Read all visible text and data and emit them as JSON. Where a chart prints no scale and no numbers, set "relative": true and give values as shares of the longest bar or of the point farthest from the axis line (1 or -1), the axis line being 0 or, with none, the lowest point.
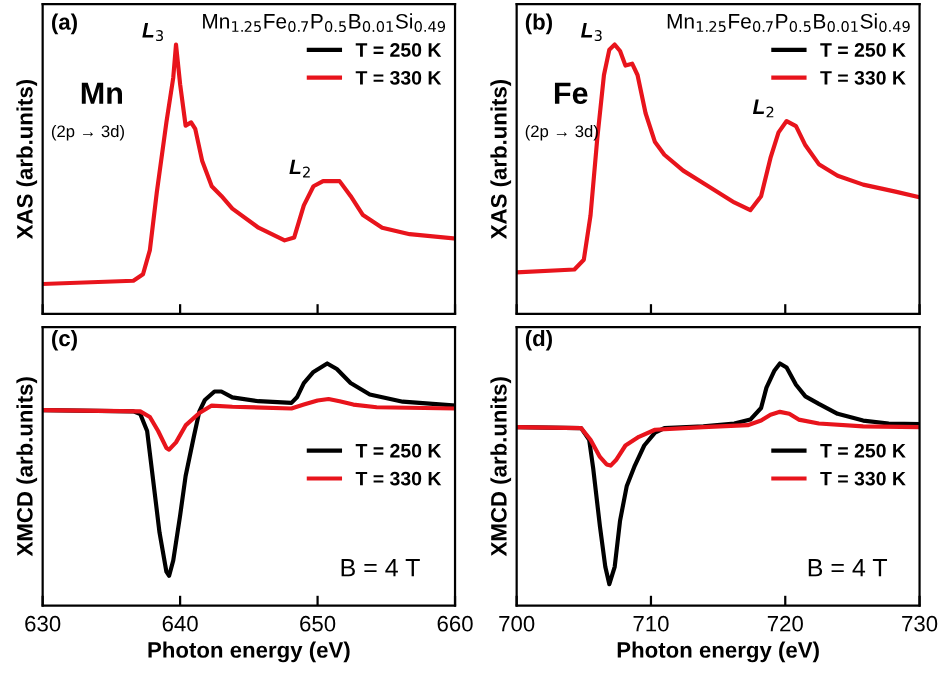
{
  "chart_data": [
    {
      "type": "line",
      "relative": true,
      "ylabel": "XAS (arb.units)",
      "xlim": [
        630,
        660
      ],
      "xticks": [
        630,
        640,
        650,
        660
      ],
      "tick_labels": false,
      "legend": "top right",
      "line_style": "solid",
      "marker": "none",
      "annotations": [
        "(a)",
        "Mn",
        "(2p → 3d)",
        "Mn$_{1.25}$Fe$_{0.7}$P$_{0.5}$B$_{0.01}$Si$_{0.49}$",
        {
          "text": "L$_{3}$",
          "x": 639.7,
          "y": 1.0
        },
        {
          "text": "L$_{2}$",
          "x": 650.4,
          "y": 0.493
        }
      ],
      "x": [
        630,
        636.6,
        637.3,
        637.8,
        638.3,
        639.0,
        639.5,
        639.7,
        640.0,
        640.4,
        640.8,
        641.1,
        641.6,
        642.3,
        643.0,
        643.8,
        645.7,
        647.6,
        648.3,
        649.0,
        649.7,
        650.4,
        651.6,
        652.4,
        653.3,
        654.7,
        656.7,
        660.0
      ],
      "series": [
        {
          "name": "T = 250 K",
          "color": "#000000",
          "values": [
            null,
            null,
            null,
            null,
            null,
            null,
            null,
            null,
            null,
            null,
            null,
            null,
            null,
            null,
            null,
            null,
            null,
            null,
            null,
            null,
            null,
            null,
            null,
            null,
            null,
            null,
            null,
            null
          ]
        },
        {
          "name": "T = 330 K",
          "color": "#e8141c",
          "values": [
            0.111,
            0.123,
            0.147,
            0.237,
            0.45,
            0.711,
            0.877,
            1.0,
            0.853,
            0.699,
            0.711,
            0.687,
            0.569,
            0.474,
            0.438,
            0.391,
            0.32,
            0.273,
            0.284,
            0.403,
            0.474,
            0.493,
            0.493,
            0.438,
            0.367,
            0.32,
            0.296,
            0.28
          ]
        }
      ]
    },
    {
      "type": "line",
      "relative": true,
      "ylabel": "XAS (arb.units)",
      "xlim": [
        700,
        730
      ],
      "xticks": [
        700,
        710,
        720,
        730
      ],
      "tick_labels": false,
      "legend": "top right",
      "line_style": "solid",
      "marker": "none",
      "annotations": [
        "(b)",
        "Fe",
        "(2p → 3d)",
        "Mn$_{1.25}$Fe$_{0.7}$P$_{0.5}$B$_{0.01}$Si$_{0.49}$",
        {
          "text": "L$_{3}$",
          "x": 707.3,
          "y": 1.0
        },
        {
          "text": "L$_{2}$",
          "x": 720.1,
          "y": 0.716
        }
      ],
      "x": [
        700,
        704.3,
        705.0,
        705.5,
        706.0,
        706.5,
        706.9,
        707.3,
        707.7,
        708.1,
        708.6,
        709.0,
        709.6,
        710.3,
        711.0,
        712.4,
        714.3,
        716.2,
        717.4,
        718.2,
        718.9,
        719.5,
        720.1,
        720.8,
        721.5,
        722.5,
        723.9,
        725.8,
        728.2,
        730.0
      ],
      "series": [
        {
          "name": "T = 250 K",
          "color": "#000000",
          "values": [
            null,
            null,
            null,
            null,
            null,
            null,
            null,
            null,
            null,
            null,
            null,
            null,
            null,
            null,
            null,
            null,
            null,
            null,
            null,
            null,
            null,
            null,
            null,
            null,
            null,
            null,
            null,
            null,
            null,
            null
          ]
        },
        {
          "name": "T = 330 K",
          "color": "#e8141c",
          "values": [
            0.154,
            0.165,
            0.201,
            0.366,
            0.65,
            0.887,
            0.981,
            1.0,
            0.976,
            0.922,
            0.929,
            0.887,
            0.745,
            0.638,
            0.591,
            0.532,
            0.473,
            0.414,
            0.385,
            0.437,
            0.579,
            0.674,
            0.716,
            0.697,
            0.626,
            0.556,
            0.513,
            0.48,
            0.454,
            0.433
          ]
        }
      ]
    },
    {
      "type": "line",
      "relative": true,
      "ylabel": "XMCD (arb.units)",
      "xlabel": "Photon energy (eV)",
      "xlim": [
        630,
        660
      ],
      "xticks": [
        630,
        640,
        650,
        660
      ],
      "tick_labels": "x",
      "legend": "right",
      "line_style": "solid",
      "marker": "none",
      "annotations": [
        "(c)",
        "B = 4 T"
      ],
      "series": [
        {
          "name": "T = 250 K",
          "color": "#000000",
          "x": [
            630,
            636.6,
            637.1,
            637.6,
            638.0,
            638.5,
            639.0,
            639.2,
            639.5,
            640.0,
            640.4,
            641.0,
            641.4,
            641.8,
            642.5,
            643.0,
            643.8,
            645.7,
            648.1,
            648.5,
            649.0,
            649.7,
            650.7,
            651.4,
            652.4,
            653.8,
            656.2,
            660.0
          ],
          "values": [
            0.807,
            0.802,
            0.791,
            0.721,
            0.535,
            0.302,
            0.14,
            0.123,
            0.186,
            0.372,
            0.535,
            0.698,
            0.802,
            0.849,
            0.884,
            0.884,
            0.86,
            0.844,
            0.837,
            0.86,
            0.919,
            0.965,
            1.0,
            0.977,
            0.919,
            0.872,
            0.842,
            0.826
          ]
        },
        {
          "name": "T = 330 K",
          "color": "#e8141c",
          "x": [
            630,
            637.1,
            637.8,
            638.4,
            639.0,
            639.2,
            639.7,
            640.4,
            641.4,
            642.3,
            643.8,
            648.1,
            649.0,
            650.0,
            650.8,
            651.6,
            652.6,
            654.3,
            660.0
          ],
          "values": [
            0.807,
            0.802,
            0.779,
            0.721,
            0.651,
            0.644,
            0.674,
            0.744,
            0.795,
            0.826,
            0.821,
            0.814,
            0.83,
            0.847,
            0.853,
            0.844,
            0.83,
            0.819,
            0.814
          ]
        }
      ]
    },
    {
      "type": "line",
      "relative": true,
      "ylabel": "XMCD (arb.units)",
      "xlabel": "Photon energy (eV)",
      "xlim": [
        700,
        730
      ],
      "xticks": [
        700,
        710,
        720,
        730
      ],
      "tick_labels": "x",
      "legend": "right",
      "line_style": "solid",
      "marker": "none",
      "annotations": [
        "(d)",
        "B = 4 T"
      ],
      "series": [
        {
          "name": "T = 250 K",
          "color": "#000000",
          "x": [
            700,
            704.8,
            705.4,
            705.7,
            706.2,
            706.6,
            706.9,
            707.3,
            707.7,
            708.2,
            708.8,
            709.5,
            710.3,
            711.0,
            713.9,
            716.2,
            717.4,
            718.2,
            718.6,
            719.2,
            719.6,
            720.1,
            720.8,
            721.5,
            722.5,
            723.9,
            725.8,
            727.7,
            730.0
          ],
          "values": [
            0.737,
            0.733,
            0.685,
            0.566,
            0.327,
            0.16,
            0.088,
            0.16,
            0.351,
            0.494,
            0.578,
            0.661,
            0.714,
            0.733,
            0.74,
            0.752,
            0.768,
            0.816,
            0.9,
            0.971,
            1.0,
            0.983,
            0.912,
            0.864,
            0.833,
            0.792,
            0.764,
            0.752,
            0.749
          ]
        },
        {
          "name": "T = 330 K",
          "color": "#e8141c",
          "x": [
            700,
            704.8,
            705.5,
            706.2,
            706.7,
            707.0,
            707.4,
            708.1,
            709.1,
            710.3,
            713.9,
            717.2,
            718.2,
            718.9,
            719.6,
            720.3,
            721.0,
            722.5,
            725.8,
            730.0
          ],
          "values": [
            0.737,
            0.733,
            0.685,
            0.614,
            0.583,
            0.578,
            0.601,
            0.661,
            0.697,
            0.726,
            0.737,
            0.745,
            0.764,
            0.788,
            0.8,
            0.792,
            0.768,
            0.752,
            0.74,
            0.737
          ]
        }
      ]
    }
  ]
}
